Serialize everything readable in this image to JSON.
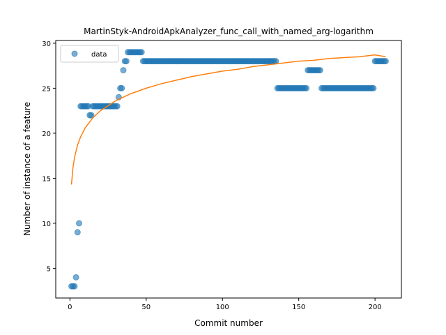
{
  "chart_data": {
    "type": "scatter",
    "title": "MartinStyk-AndroidApkAnalyzer_func_call_with_named_arg-logarithm",
    "xlabel": "Commit number",
    "ylabel": "Number of instance of a feature",
    "xlim": [
      -9.3,
      217.3
    ],
    "ylim": [
      1.7,
      30.3
    ],
    "xticks": [
      0,
      50,
      100,
      150,
      200
    ],
    "yticks": [
      5,
      10,
      15,
      20,
      25,
      30
    ],
    "grid": false,
    "legend_position": "top-left",
    "series": [
      {
        "name": "data",
        "kind": "points",
        "color": "#1f77b4",
        "alpha": 0.6,
        "points": [
          [
            1,
            3
          ],
          [
            2,
            3
          ],
          [
            3,
            3
          ],
          [
            4,
            4
          ],
          [
            5,
            9
          ],
          [
            6,
            10
          ],
          [
            7,
            23
          ],
          [
            8,
            23
          ],
          [
            9,
            23
          ],
          [
            10,
            23
          ],
          [
            11,
            23
          ],
          [
            12,
            23
          ],
          [
            13,
            22
          ],
          [
            14,
            22
          ],
          [
            15,
            23
          ],
          [
            16,
            23
          ],
          [
            17,
            23
          ],
          [
            18,
            23
          ],
          [
            19,
            23
          ],
          [
            20,
            23
          ],
          [
            21,
            23
          ],
          [
            22,
            23
          ],
          [
            23,
            23
          ],
          [
            24,
            23
          ],
          [
            25,
            23
          ],
          [
            26,
            23
          ],
          [
            27,
            23
          ],
          [
            28,
            23
          ],
          [
            29,
            23
          ],
          [
            30,
            23
          ],
          [
            31,
            23
          ],
          [
            32,
            24
          ],
          [
            33,
            25
          ],
          [
            34,
            25
          ],
          [
            35,
            27
          ],
          [
            36,
            28
          ],
          [
            37,
            28
          ],
          [
            38,
            29
          ],
          [
            39,
            29
          ],
          [
            40,
            29
          ],
          [
            41,
            29
          ],
          [
            42,
            29
          ],
          [
            43,
            29
          ],
          [
            44,
            29
          ],
          [
            45,
            29
          ],
          [
            46,
            29
          ],
          [
            47,
            29
          ],
          [
            48,
            28
          ],
          [
            49,
            28
          ],
          [
            50,
            28
          ],
          [
            51,
            28
          ],
          [
            52,
            28
          ],
          [
            53,
            28
          ],
          [
            54,
            28
          ],
          [
            55,
            28
          ],
          [
            56,
            28
          ],
          [
            57,
            28
          ],
          [
            58,
            28
          ],
          [
            59,
            28
          ],
          [
            60,
            28
          ],
          [
            61,
            28
          ],
          [
            62,
            28
          ],
          [
            63,
            28
          ],
          [
            64,
            28
          ],
          [
            65,
            28
          ],
          [
            66,
            28
          ],
          [
            67,
            28
          ],
          [
            68,
            28
          ],
          [
            69,
            28
          ],
          [
            70,
            28
          ],
          [
            71,
            28
          ],
          [
            72,
            28
          ],
          [
            73,
            28
          ],
          [
            74,
            28
          ],
          [
            75,
            28
          ],
          [
            76,
            28
          ],
          [
            77,
            28
          ],
          [
            78,
            28
          ],
          [
            79,
            28
          ],
          [
            80,
            28
          ],
          [
            81,
            28
          ],
          [
            82,
            28
          ],
          [
            83,
            28
          ],
          [
            84,
            28
          ],
          [
            85,
            28
          ],
          [
            86,
            28
          ],
          [
            87,
            28
          ],
          [
            88,
            28
          ],
          [
            89,
            28
          ],
          [
            90,
            28
          ],
          [
            91,
            28
          ],
          [
            92,
            28
          ],
          [
            93,
            28
          ],
          [
            94,
            28
          ],
          [
            95,
            28
          ],
          [
            96,
            28
          ],
          [
            97,
            28
          ],
          [
            98,
            28
          ],
          [
            99,
            28
          ],
          [
            100,
            28
          ],
          [
            101,
            28
          ],
          [
            102,
            28
          ],
          [
            103,
            28
          ],
          [
            104,
            28
          ],
          [
            105,
            28
          ],
          [
            106,
            28
          ],
          [
            107,
            28
          ],
          [
            108,
            28
          ],
          [
            109,
            28
          ],
          [
            110,
            28
          ],
          [
            111,
            28
          ],
          [
            112,
            28
          ],
          [
            113,
            28
          ],
          [
            114,
            28
          ],
          [
            115,
            28
          ],
          [
            116,
            28
          ],
          [
            117,
            28
          ],
          [
            118,
            28
          ],
          [
            119,
            28
          ],
          [
            120,
            28
          ],
          [
            121,
            28
          ],
          [
            122,
            28
          ],
          [
            123,
            28
          ],
          [
            124,
            28
          ],
          [
            125,
            28
          ],
          [
            126,
            28
          ],
          [
            127,
            28
          ],
          [
            128,
            28
          ],
          [
            129,
            28
          ],
          [
            130,
            28
          ],
          [
            131,
            28
          ],
          [
            132,
            28
          ],
          [
            133,
            28
          ],
          [
            134,
            28
          ],
          [
            135,
            28
          ],
          [
            136,
            25
          ],
          [
            137,
            25
          ],
          [
            138,
            25
          ],
          [
            139,
            25
          ],
          [
            140,
            25
          ],
          [
            141,
            25
          ],
          [
            142,
            25
          ],
          [
            143,
            25
          ],
          [
            144,
            25
          ],
          [
            145,
            25
          ],
          [
            146,
            25
          ],
          [
            147,
            25
          ],
          [
            148,
            25
          ],
          [
            149,
            25
          ],
          [
            150,
            25
          ],
          [
            151,
            25
          ],
          [
            152,
            25
          ],
          [
            153,
            25
          ],
          [
            154,
            25
          ],
          [
            155,
            25
          ],
          [
            156,
            27
          ],
          [
            157,
            27
          ],
          [
            158,
            27
          ],
          [
            159,
            27
          ],
          [
            160,
            27
          ],
          [
            161,
            27
          ],
          [
            162,
            27
          ],
          [
            163,
            27
          ],
          [
            164,
            27
          ],
          [
            165,
            25
          ],
          [
            166,
            25
          ],
          [
            167,
            25
          ],
          [
            168,
            25
          ],
          [
            169,
            25
          ],
          [
            170,
            25
          ],
          [
            171,
            25
          ],
          [
            172,
            25
          ],
          [
            173,
            25
          ],
          [
            174,
            25
          ],
          [
            175,
            25
          ],
          [
            176,
            25
          ],
          [
            177,
            25
          ],
          [
            178,
            25
          ],
          [
            179,
            25
          ],
          [
            180,
            25
          ],
          [
            181,
            25
          ],
          [
            182,
            25
          ],
          [
            183,
            25
          ],
          [
            184,
            25
          ],
          [
            185,
            25
          ],
          [
            186,
            25
          ],
          [
            187,
            25
          ],
          [
            188,
            25
          ],
          [
            189,
            25
          ],
          [
            190,
            25
          ],
          [
            191,
            25
          ],
          [
            192,
            25
          ],
          [
            193,
            25
          ],
          [
            194,
            25
          ],
          [
            195,
            25
          ],
          [
            196,
            25
          ],
          [
            197,
            25
          ],
          [
            198,
            25
          ],
          [
            199,
            25
          ],
          [
            200,
            28
          ],
          [
            201,
            28
          ],
          [
            202,
            28
          ],
          [
            203,
            28
          ],
          [
            204,
            28
          ],
          [
            205,
            28
          ],
          [
            206,
            28
          ],
          [
            207,
            28
          ]
        ]
      },
      {
        "kind": "line",
        "color": "#ff7f0e",
        "points": [
          [
            1,
            14.3
          ],
          [
            2,
            16.2
          ],
          [
            3,
            17.3
          ],
          [
            5,
            18.7
          ],
          [
            7,
            19.6
          ],
          [
            10,
            20.6
          ],
          [
            15,
            21.7
          ],
          [
            20,
            22.5
          ],
          [
            30,
            23.6
          ],
          [
            40,
            24.4
          ],
          [
            50,
            25.0
          ],
          [
            60,
            25.5
          ],
          [
            70,
            25.9
          ],
          [
            80,
            26.3
          ],
          [
            90,
            26.6
          ],
          [
            100,
            26.9
          ],
          [
            110,
            27.1
          ],
          [
            120,
            27.4
          ],
          [
            130,
            27.6
          ],
          [
            140,
            27.8
          ],
          [
            150,
            28.0
          ],
          [
            160,
            28.1
          ],
          [
            170,
            28.3
          ],
          [
            180,
            28.4
          ],
          [
            190,
            28.5
          ],
          [
            200,
            28.7
          ],
          [
            207,
            28.5
          ]
        ]
      }
    ]
  }
}
